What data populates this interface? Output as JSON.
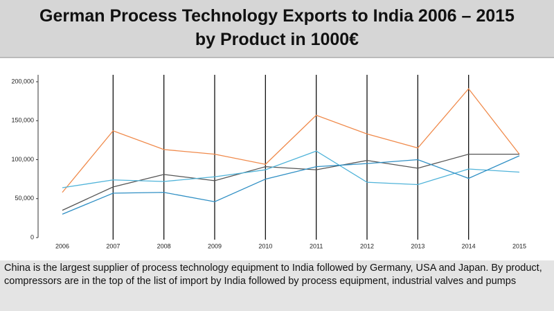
{
  "chart_data": {
    "type": "line",
    "title": "German Process Technology Exports to India 2006 – 2015",
    "subtitle": "by Product in 1000€",
    "caption": "China is the largest supplier of process technology equipment to India followed by Germany, USA and Japan. By product, compressors are in the top of the list of import by India followed by process equipment, industrial valves and pumps",
    "categories": [
      "2006",
      "2007",
      "2008",
      "2009",
      "2010",
      "2011",
      "2012",
      "2013",
      "2014",
      "2015"
    ],
    "series": [
      {
        "color": "#f08a4b",
        "values": [
          58000,
          137000,
          113000,
          107000,
          94000,
          157000,
          133000,
          115000,
          191000,
          107000
        ]
      },
      {
        "color": "#555555",
        "values": [
          35000,
          65000,
          81000,
          73000,
          91000,
          87000,
          99000,
          89000,
          107000,
          107000
        ]
      },
      {
        "color": "#4fb3d9",
        "values": [
          64000,
          74000,
          72000,
          78000,
          87000,
          111000,
          71000,
          68000,
          88000,
          84000
        ]
      },
      {
        "color": "#2f8fc4",
        "values": [
          30000,
          57000,
          58000,
          46000,
          75000,
          91000,
          95000,
          100000,
          76000,
          105000
        ]
      }
    ],
    "ylim": [
      0,
      200000
    ],
    "yticks": [
      0,
      {
        "value": 50000,
        "label": "50,000"
      },
      {
        "value": 100000,
        "label": "100,000"
      },
      {
        "value": 150000,
        "label": "150,000"
      },
      {
        "value": 200000,
        "label": "200,000"
      }
    ],
    "grid": true
  }
}
